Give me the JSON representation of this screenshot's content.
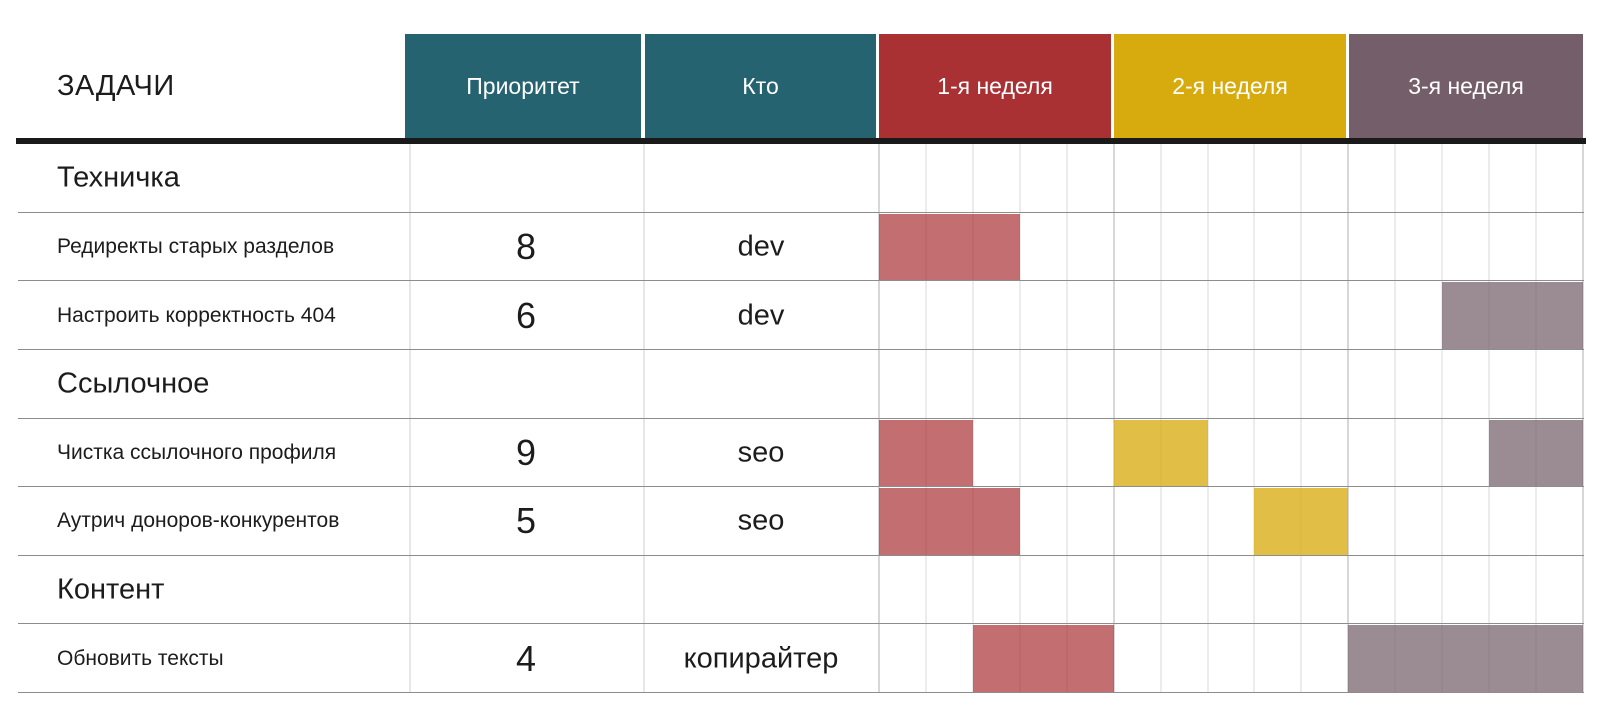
{
  "colors": {
    "teal": "#256370",
    "red": "#A93134",
    "yellow": "#D7AB0D",
    "mauve": "#745E6A",
    "bar_red": "rgba(169,49,52,0.70)",
    "bar_yellow": "rgba(215,171,13,0.76)",
    "bar_mauve": "rgba(116,94,106,0.72)",
    "grid_day": "#ececec",
    "grid_week": "#d7d7d7",
    "row_divider": "#8d8d8d",
    "header_underline": "#1a1a1a"
  },
  "header": {
    "tasks_label": "ЗАДАЧИ",
    "columns": [
      {
        "label": "Приоритет",
        "bg": "teal"
      },
      {
        "label": "Кто",
        "bg": "teal"
      },
      {
        "label": "1-я неделя",
        "bg": "red"
      },
      {
        "label": "2-я неделя",
        "bg": "yellow"
      },
      {
        "label": "3-я неделя",
        "bg": "mauve"
      }
    ]
  },
  "rows": [
    {
      "type": "section",
      "name": "Техничка",
      "bars": []
    },
    {
      "type": "task",
      "name": "Редиректы старых разделов",
      "priority": "8",
      "who": "dev",
      "bars": [
        {
          "color": "red",
          "start": 0,
          "len": 3
        }
      ]
    },
    {
      "type": "task",
      "name": "Настроить корректность 404",
      "priority": "6",
      "who": "dev",
      "bars": [
        {
          "color": "mauve",
          "start": 12,
          "len": 3
        }
      ]
    },
    {
      "type": "section",
      "name": "Ссылочное",
      "bars": []
    },
    {
      "type": "task",
      "name": "Чистка ссылочного профиля",
      "priority": "9",
      "who": "seo",
      "bars": [
        {
          "color": "red",
          "start": 0,
          "len": 2
        },
        {
          "color": "yellow",
          "start": 5,
          "len": 2
        },
        {
          "color": "mauve",
          "start": 13,
          "len": 2
        }
      ]
    },
    {
      "type": "task",
      "name": "Аутрич доноров-конкурентов",
      "priority": "5",
      "who": "seo",
      "bars": [
        {
          "color": "red",
          "start": 0,
          "len": 3
        },
        {
          "color": "yellow",
          "start": 8,
          "len": 2
        }
      ]
    },
    {
      "type": "section",
      "name": "Контент",
      "bars": []
    },
    {
      "type": "task",
      "name": "Обновить тексты",
      "priority": "4",
      "who": "копирайтер",
      "bars": [
        {
          "color": "red",
          "start": 2,
          "len": 3
        },
        {
          "color": "mauve",
          "start": 10,
          "len": 5
        }
      ]
    }
  ],
  "chart_data": {
    "type": "table",
    "subtype": "gantt",
    "title": "ЗАДАЧИ",
    "columns": [
      "ЗАДАЧИ",
      "Приоритет",
      "Кто",
      "1-я неделя",
      "2-я неделя",
      "3-я неделя"
    ],
    "weeks": [
      "1-я неделя",
      "2-я неделя",
      "3-я неделя"
    ],
    "days_per_week": 5,
    "grid": true,
    "week_colors": {
      "1-я неделя": "#A93134",
      "2-я неделя": "#D7AB0D",
      "3-я неделя": "#745E6A"
    },
    "sections": [
      {
        "name": "Техничка",
        "tasks": [
          {
            "name": "Редиректы старых разделов",
            "priority": 8,
            "who": "dev",
            "schedule": [
              {
                "week": 1,
                "days": "1-3",
                "color": "#A93134"
              }
            ]
          },
          {
            "name": "Настроить корректность 404",
            "priority": 6,
            "who": "dev",
            "schedule": [
              {
                "week": 3,
                "days": "3-5",
                "color": "#745E6A"
              }
            ]
          }
        ]
      },
      {
        "name": "Ссылочное",
        "tasks": [
          {
            "name": "Чистка ссылочного профиля",
            "priority": 9,
            "who": "seo",
            "schedule": [
              {
                "week": 1,
                "days": "1-2",
                "color": "#A93134"
              },
              {
                "week": 2,
                "days": "1-2",
                "color": "#D7AB0D"
              },
              {
                "week": 3,
                "days": "4-5",
                "color": "#745E6A"
              }
            ]
          },
          {
            "name": "Аутрич доноров-конкурентов",
            "priority": 5,
            "who": "seo",
            "schedule": [
              {
                "week": 1,
                "days": "1-3",
                "color": "#A93134"
              },
              {
                "week": 2,
                "days": "4-5",
                "color": "#D7AB0D"
              }
            ]
          }
        ]
      },
      {
        "name": "Контент",
        "tasks": [
          {
            "name": "Обновить тексты",
            "priority": 4,
            "who": "копирайтер",
            "schedule": [
              {
                "week": 1,
                "days": "3-5",
                "color": "#A93134"
              },
              {
                "week": 3,
                "days": "1-5",
                "color": "#745E6A"
              }
            ]
          }
        ]
      }
    ]
  }
}
